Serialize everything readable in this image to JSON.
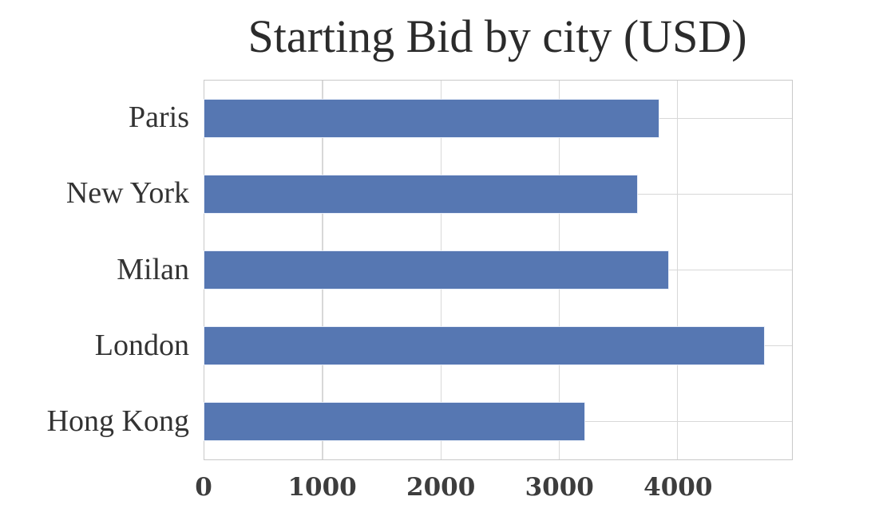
{
  "chart_data": {
    "type": "bar",
    "orientation": "horizontal",
    "title": "Starting Bid by city (USD)",
    "categories": [
      "Paris",
      "New York",
      "Milan",
      "London",
      "Hong Kong"
    ],
    "values": [
      3840,
      3660,
      3920,
      4730,
      3210
    ],
    "xlabel": "",
    "ylabel": "",
    "xticks": [
      0,
      1000,
      2000,
      3000,
      4000
    ],
    "xtick_labels": [
      "0",
      "1000",
      "2000",
      "3000",
      "4000"
    ],
    "xlim": [
      0,
      4967
    ],
    "grid": true,
    "legend": false,
    "bar_color": "#5677b2",
    "grid_color": "#d8d8d8",
    "axis_border_color": "#c9c9c9",
    "title_color": "#2b2b2b",
    "category_label_color": "#333333",
    "tick_label_color": "#3d3d3d",
    "background_color": "#ffffff"
  }
}
